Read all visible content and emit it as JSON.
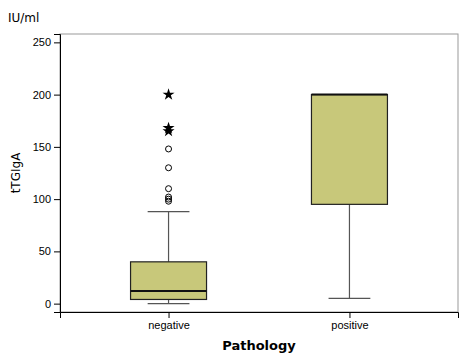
{
  "chart_data": {
    "type": "box",
    "xlabel": "Pathology",
    "ylabel": "tTGIgA",
    "annotations": [
      "IU/ml"
    ],
    "categories": [
      "negative",
      "positive"
    ],
    "boxes": [
      {
        "q1": 4,
        "median": 12,
        "q3": 40,
        "whisker_low": 0,
        "whisker_high": 88,
        "outliers": [
          98,
          100,
          102,
          110,
          130,
          148
        ],
        "far_outliers": [
          165,
          168,
          200
        ]
      },
      {
        "q1": 95,
        "median": 200,
        "q3": 200,
        "whisker_low": 5,
        "whisker_high": 200,
        "outliers": [],
        "far_outliers": []
      }
    ],
    "color": "#c8c87a",
    "ylim": [
      -8,
      258
    ],
    "yticks": [
      0,
      50,
      100,
      150,
      200,
      250
    ],
    "grid": false
  }
}
